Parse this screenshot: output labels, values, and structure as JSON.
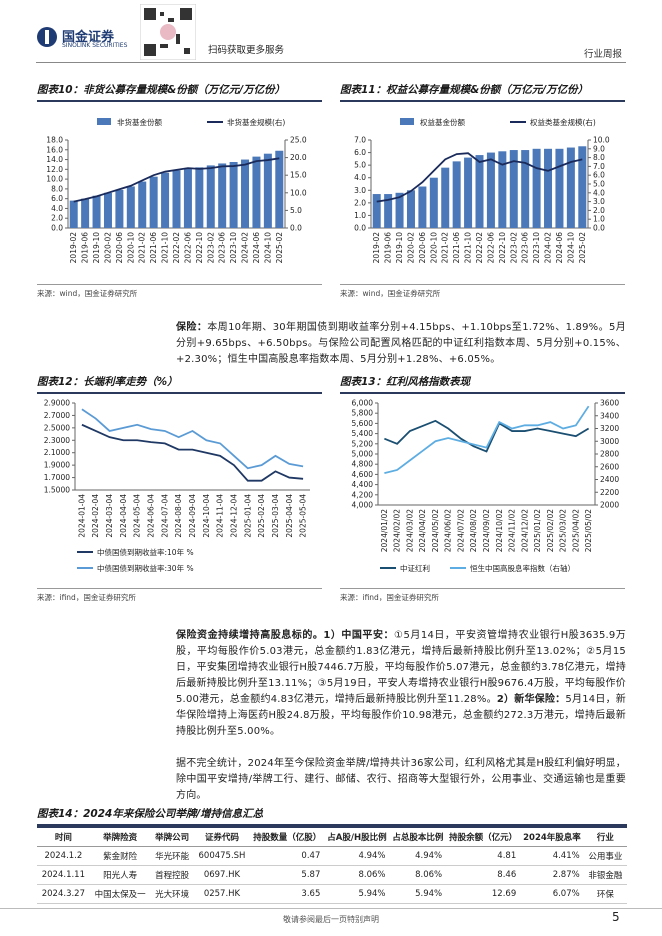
{
  "header": {
    "logo_text": "国金证券",
    "logo_sub": "SINOLINK SECURITIES",
    "qr_text": "扫码获取更多服务",
    "section": "行业周报"
  },
  "chart_data": [
    {
      "type": "bar",
      "title": "图表10：非货公募存量规模&份额（万亿元/万亿份）",
      "source": "来源：wind，国金证券研究所",
      "legend": "top",
      "categories": [
        "2019-02",
        "2019-06",
        "2019-10",
        "2020-02",
        "2020-06",
        "2020-10",
        "2021-02",
        "2021-06",
        "2021-10",
        "2022-02",
        "2022-06",
        "2022-10",
        "2023-02",
        "2023-06",
        "2023-10",
        "2024-02",
        "2024-06",
        "2024-10",
        "2025-02"
      ],
      "series": [
        {
          "name": "非货基金份额",
          "type": "bar",
          "color": "#4a78b8",
          "values": [
            5.6,
            6.0,
            6.6,
            7.2,
            7.8,
            8.5,
            9.5,
            10.5,
            11.3,
            11.8,
            12.2,
            12.4,
            12.8,
            13.2,
            13.5,
            14.0,
            14.6,
            15.2,
            15.8
          ]
        },
        {
          "name": "非货基金规模(右)",
          "type": "line",
          "axis": "y2",
          "color": "#1a2a5a",
          "values": [
            7.5,
            8.2,
            9.0,
            10.0,
            11.0,
            12.0,
            13.5,
            15.0,
            16.0,
            16.5,
            17.0,
            16.8,
            17.0,
            17.5,
            17.6,
            18.0,
            19.0,
            19.3,
            19.8
          ]
        }
      ],
      "ylim": [
        0,
        18
      ],
      "yticks": [
        {
          "value": 0,
          "label": "0.0"
        },
        {
          "value": 2,
          "label": "2.0"
        },
        {
          "value": 4,
          "label": "4.0"
        },
        {
          "value": 6,
          "label": "6.0"
        },
        {
          "value": 8,
          "label": "8.0"
        },
        {
          "value": 10,
          "label": "10.0"
        },
        {
          "value": 12,
          "label": "12.0"
        },
        {
          "value": 14,
          "label": "14.0"
        },
        {
          "value": 16,
          "label": "16.0"
        },
        {
          "value": 18,
          "label": "18.0"
        }
      ],
      "y2lim": [
        0,
        25
      ],
      "y2ticks": [
        {
          "value": 0,
          "label": "0.0"
        },
        {
          "value": 5,
          "label": "5.0"
        },
        {
          "value": 10,
          "label": "10.0"
        },
        {
          "value": 15,
          "label": "15.0"
        },
        {
          "value": 20,
          "label": "20.0"
        },
        {
          "value": 25,
          "label": "25.0"
        }
      ]
    },
    {
      "type": "bar",
      "title": "图表11：权益公募存量规模&份额（万亿元/万亿份）",
      "source": "来源：wind，国金证券研究所",
      "legend": "top",
      "categories": [
        "2019-02",
        "2019-06",
        "2019-10",
        "2020-02",
        "2020-06",
        "2020-10",
        "2021-02",
        "2021-06",
        "2021-10",
        "2022-02",
        "2022-06",
        "2022-10",
        "2023-02",
        "2023-06",
        "2023-10",
        "2024-02",
        "2024-06",
        "2024-10",
        "2025-02"
      ],
      "series": [
        {
          "name": "权益基金份额",
          "type": "bar",
          "color": "#4a78b8",
          "values": [
            2.7,
            2.7,
            2.8,
            3.0,
            3.3,
            4.0,
            4.8,
            5.3,
            5.6,
            5.8,
            6.0,
            6.1,
            6.2,
            6.2,
            6.3,
            6.3,
            6.3,
            6.4,
            6.5
          ]
        },
        {
          "name": "权益类基金规模(右)",
          "type": "line",
          "axis": "y2",
          "color": "#1a2a5a",
          "values": [
            3.0,
            3.2,
            3.5,
            4.2,
            5.2,
            6.5,
            7.8,
            8.4,
            8.5,
            7.5,
            7.8,
            7.2,
            7.6,
            7.4,
            6.8,
            6.5,
            7.0,
            7.5,
            7.8
          ]
        }
      ],
      "ylim": [
        0,
        7
      ],
      "yticks": [
        {
          "value": 0,
          "label": "0.0"
        },
        {
          "value": 1,
          "label": "1.0"
        },
        {
          "value": 2,
          "label": "2.0"
        },
        {
          "value": 3,
          "label": "3.0"
        },
        {
          "value": 4,
          "label": "4.0"
        },
        {
          "value": 5,
          "label": "5.0"
        },
        {
          "value": 6,
          "label": "6.0"
        },
        {
          "value": 7,
          "label": "7.0"
        }
      ],
      "y2lim": [
        0,
        10
      ],
      "y2ticks": [
        {
          "value": 0,
          "label": "0.0"
        },
        {
          "value": 1,
          "label": "1.0"
        },
        {
          "value": 2,
          "label": "2.0"
        },
        {
          "value": 3,
          "label": "3.0"
        },
        {
          "value": 4,
          "label": "4.0"
        },
        {
          "value": 5,
          "label": "5.0"
        },
        {
          "value": 6,
          "label": "6.0"
        },
        {
          "value": 7,
          "label": "7.0"
        },
        {
          "value": 8,
          "label": "8.0"
        },
        {
          "value": 9,
          "label": "9.0"
        },
        {
          "value": 10,
          "label": "10.0"
        }
      ]
    },
    {
      "type": "line",
      "title": "图表12：长端利率走势（%）",
      "source": "来源：ifind，国金证券研究所",
      "legend": "bottom",
      "categories": [
        "2024-01-04",
        "2024-02-04",
        "2024-03-04",
        "2024-04-04",
        "2024-05-04",
        "2024-06-04",
        "2024-07-04",
        "2024-08-04",
        "2024-09-04",
        "2024-10-04",
        "2024-11-04",
        "2024-12-04",
        "2025-01-04",
        "2025-02-04",
        "2025-03-04",
        "2025-04-04",
        "2025-05-04"
      ],
      "series": [
        {
          "name": "中债国债到期收益率:10年 %",
          "type": "line",
          "color": "#1f3864",
          "values": [
            2.55,
            2.45,
            2.35,
            2.3,
            2.3,
            2.27,
            2.25,
            2.15,
            2.15,
            2.1,
            2.05,
            1.9,
            1.65,
            1.65,
            1.8,
            1.7,
            1.68
          ]
        },
        {
          "name": "中债国债到期收益率:30年 %",
          "type": "line",
          "color": "#5b9bd5",
          "values": [
            2.8,
            2.65,
            2.45,
            2.5,
            2.55,
            2.48,
            2.45,
            2.35,
            2.45,
            2.3,
            2.25,
            2.05,
            1.85,
            1.9,
            2.05,
            1.92,
            1.88
          ]
        }
      ],
      "ylim": [
        1.5,
        2.9
      ],
      "yticks": [
        {
          "value": 1.5,
          "label": "1.5000"
        },
        {
          "value": 1.7,
          "label": "1.7000"
        },
        {
          "value": 1.9,
          "label": "1.9000"
        },
        {
          "value": 2.1,
          "label": "2.1000"
        },
        {
          "value": 2.3,
          "label": "2.3000"
        },
        {
          "value": 2.5,
          "label": "2.5000"
        },
        {
          "value": 2.7,
          "label": "2.7000"
        },
        {
          "value": 2.9,
          "label": "2.9000"
        }
      ]
    },
    {
      "type": "line",
      "title": "图表13：红利风格指数表现",
      "source": "来源：ifind，国金证券研究所",
      "legend": "bottom-row",
      "categories": [
        "2024/01/02",
        "2024/02/02",
        "2024/03/02",
        "2024/04/02",
        "2024/05/02",
        "2024/06/02",
        "2024/07/02",
        "2024/08/02",
        "2024/09/02",
        "2024/10/02",
        "2024/11/02",
        "2024/12/02",
        "2025/01/02",
        "2025/02/02",
        "2025/03/02",
        "2025/04/02",
        "2025/05/02"
      ],
      "series": [
        {
          "name": "中证红利",
          "type": "line",
          "color": "#1b4f72",
          "values": [
            5300,
            5200,
            5450,
            5550,
            5650,
            5500,
            5300,
            5150,
            5050,
            5600,
            5450,
            5450,
            5500,
            5450,
            5400,
            5350,
            5500
          ]
        },
        {
          "name": "恒生中国高股息率指数（右轴）",
          "type": "line",
          "axis": "y2",
          "color": "#5dade2",
          "values": [
            2500,
            2550,
            2700,
            2850,
            3000,
            3050,
            3000,
            2950,
            2900,
            3300,
            3200,
            3250,
            3250,
            3300,
            3200,
            3250,
            3550
          ]
        }
      ],
      "ylim": [
        4000,
        6000
      ],
      "yticks": [
        {
          "value": 4000,
          "label": "4,000"
        },
        {
          "value": 4200,
          "label": "4,200"
        },
        {
          "value": 4400,
          "label": "4,400"
        },
        {
          "value": 4600,
          "label": "4,600"
        },
        {
          "value": 4800,
          "label": "4,800"
        },
        {
          "value": 5000,
          "label": "5,000"
        },
        {
          "value": 5200,
          "label": "5,200"
        },
        {
          "value": 5400,
          "label": "5,400"
        },
        {
          "value": 5600,
          "label": "5,600"
        },
        {
          "value": 5800,
          "label": "5,800"
        },
        {
          "value": 6000,
          "label": "6,000"
        }
      ],
      "y2lim": [
        2000,
        3600
      ],
      "y2ticks": [
        2000,
        2200,
        2400,
        2600,
        2800,
        3000,
        3200,
        3400,
        3600
      ]
    }
  ],
  "paragraphs": [
    [
      {
        "text": "保险：",
        "bold": true
      },
      {
        "text": "本周10年期、30年期国债到期收益率分别+4.15bps、+1.10bps至1.72%、1.89%。5月分别+9.65bps、+6.50bps。与保险公司配置风格匹配的中证红利指数本周、5月分别+0.15%、+2.30%；恒生中国高股息率指数本周、5月分别+1.28%、+6.05%。"
      }
    ],
    [
      {
        "text": "保险资金持续增持高股息标的。1）中国平安：",
        "bold": true
      },
      {
        "text": "①5月14日，平安资管增持农业银行H股3635.9万股，平均每股作价5.03港元，总金额约1.83亿港元，增持后最新持股比例升至13.02%；②5月15日，平安集团增持农业银行H股7446.7万股，平均每股作价5.07港元，总金额约3.78亿港元，增持后最新持股比例升至13.11%；③5月19日，平安人寿增持农业银行H股9676.4万股，平均每股作价5.00港元，总金额约4.83亿港元，增持后最新持股比例升至11.28%。"
      },
      {
        "text": "2）新华保险：",
        "bold": true
      },
      {
        "text": "5月14日，新华保险增持上海医药H股24.8万股，平均每股作价10.98港元，总金额约272.3万港元，增持后最新持股比例升至5.00%。"
      }
    ],
    [
      {
        "text": "据不完全统计，2024年至今保险资金举牌/增持共计36家公司，红利风格尤其是H股红利偏好明显，除中国平安增持/举牌工行、建行、邮储、农行、招商等大型银行外，公用事业、交通运输也是重要方向。"
      }
    ]
  ],
  "table": {
    "title": "图表14：2024年来保险公司举牌/增持信息汇总",
    "header": [
      "时间",
      "举牌险资",
      "举牌公司",
      "证券代码",
      "持股数量（亿股）",
      "占A股/H股比例",
      "占总股本比例",
      "持股余额（亿元）",
      "2024年股息率",
      "行业"
    ],
    "rows": [
      [
        "2024.1.2",
        "紫金财险",
        "华光环能",
        "600475.SH",
        "0.47",
        "4.94%",
        "4.94%",
        "4.81",
        "4.41%",
        "公用事业"
      ],
      [
        "2024.1.11",
        "阳光人寿",
        "首程控股",
        "0697.HK",
        "5.87",
        "8.06%",
        "8.06%",
        "8.46",
        "2.87%",
        "非银金融"
      ],
      [
        "2024.3.27",
        "中国太保及一",
        "光大环境",
        "0257.HK",
        "3.65",
        "5.94%",
        "5.94%",
        "12.69",
        "6.07%",
        "环保"
      ]
    ]
  },
  "footer": {
    "note": "敬请参阅最后一页特别声明",
    "page": "5"
  }
}
